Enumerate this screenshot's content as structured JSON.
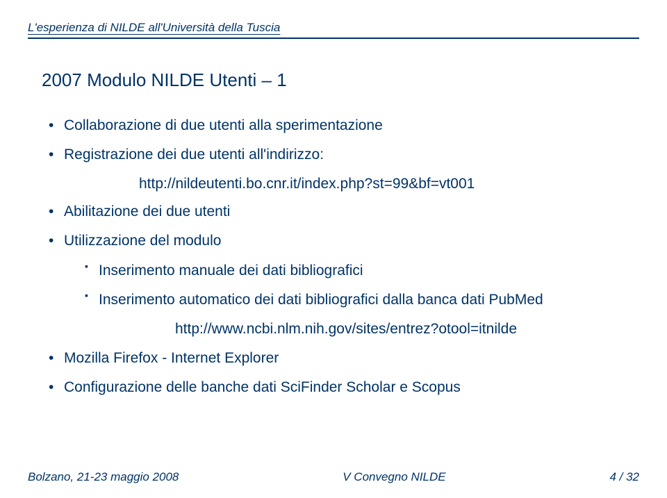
{
  "header": "L'esperienza di NILDE all'Università della Tuscia",
  "title": "2007 Modulo NILDE Utenti – 1",
  "bullets": {
    "b1": "Collaborazione di due utenti alla sperimentazione",
    "b2": "Registrazione dei due utenti all'indirizzo:",
    "url1": "http://nildeutenti.bo.cnr.it/index.php?st=99&bf=vt001",
    "b3": "Abilitazione dei due utenti",
    "b4": "Utilizzazione del modulo",
    "sub1": "Inserimento manuale dei dati bibliografici",
    "sub2": "Inserimento automatico dei dati bibliografici dalla banca dati PubMed",
    "url2": "http://www.ncbi.nlm.nih.gov/sites/entrez?otool=itnilde",
    "b5": "Mozilla Firefox - Internet Explorer",
    "b6": "Configurazione delle banche dati SciFinder Scholar e Scopus"
  },
  "footer": {
    "left": "Bolzano, 21-23 maggio 2008",
    "center": "V Convegno NILDE",
    "right": "4 / 32"
  },
  "colors": {
    "text": "#003366",
    "background": "#ffffff"
  }
}
